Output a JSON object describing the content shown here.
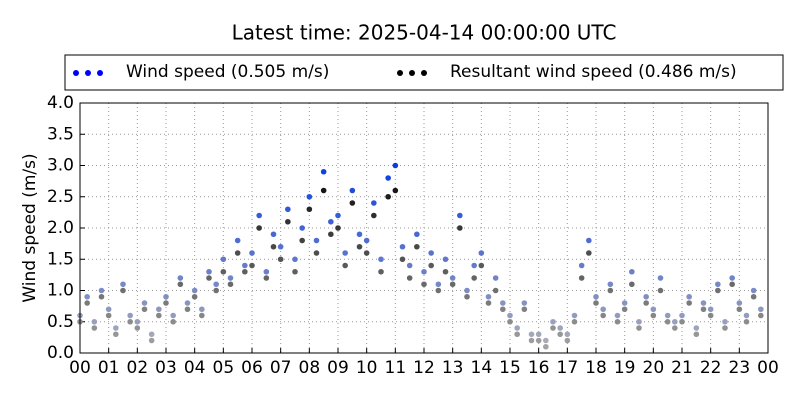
{
  "chart_data": {
    "type": "scatter",
    "title": "Latest time: 2025-04-14 00:00:00 UTC",
    "y_label": "Wind speed (m/s)",
    "x": [
      0,
      0.25,
      0.5,
      0.75,
      1,
      1.25,
      1.5,
      1.75,
      2,
      2.25,
      2.5,
      2.75,
      3,
      3.25,
      3.5,
      3.75,
      4,
      4.25,
      4.5,
      4.75,
      5,
      5.25,
      5.5,
      5.75,
      6,
      6.25,
      6.5,
      6.75,
      7,
      7.25,
      7.5,
      7.75,
      8,
      8.25,
      8.5,
      8.75,
      9,
      9.25,
      9.5,
      9.75,
      10,
      10.25,
      10.5,
      10.75,
      11,
      11.25,
      11.5,
      11.75,
      12,
      12.25,
      12.5,
      12.75,
      13,
      13.25,
      13.5,
      13.75,
      14,
      14.25,
      14.5,
      14.75,
      15,
      15.25,
      15.5,
      15.75,
      16,
      16.25,
      16.5,
      16.75,
      17,
      17.25,
      17.5,
      17.75,
      18,
      18.25,
      18.5,
      18.75,
      19,
      19.25,
      19.5,
      19.75,
      20,
      20.25,
      20.5,
      20.75,
      21,
      21.25,
      21.5,
      21.75,
      22,
      22.25,
      22.5,
      22.75,
      23,
      23.25,
      23.5,
      23.75
    ],
    "series": [
      {
        "name": "Wind speed (0.505 m/s)",
        "color": "#0000ff",
        "cmap": [
          "#b4b4b4",
          "#0a3ce6"
        ],
        "values": [
          0.6,
          0.9,
          0.5,
          1.0,
          0.7,
          0.4,
          1.1,
          0.6,
          0.5,
          0.8,
          0.3,
          0.7,
          0.9,
          0.6,
          1.2,
          0.8,
          1.0,
          0.7,
          1.3,
          1.1,
          1.5,
          1.2,
          1.8,
          1.4,
          1.6,
          2.2,
          1.3,
          1.9,
          1.7,
          2.3,
          1.5,
          2.0,
          2.5,
          1.8,
          2.9,
          2.1,
          2.2,
          1.6,
          2.6,
          1.9,
          1.8,
          2.4,
          1.5,
          2.8,
          3.0,
          1.7,
          1.4,
          1.9,
          1.3,
          1.6,
          1.1,
          1.5,
          1.2,
          2.2,
          1.0,
          1.4,
          1.6,
          0.9,
          1.2,
          0.8,
          0.6,
          0.4,
          0.8,
          0.3,
          0.3,
          0.2,
          0.5,
          0.4,
          0.3,
          0.6,
          1.4,
          1.8,
          0.9,
          0.7,
          1.1,
          0.6,
          0.8,
          1.3,
          0.5,
          0.9,
          0.7,
          1.2,
          0.6,
          0.5,
          0.6,
          0.9,
          0.4,
          0.8,
          0.7,
          1.1,
          0.5,
          1.2,
          0.8,
          0.6,
          1.0,
          0.7
        ]
      },
      {
        "name": "Resultant wind speed (0.486 m/s)",
        "color": "#000000",
        "cmap": [
          "#a8a8a8",
          "#000000"
        ],
        "values": [
          0.5,
          0.8,
          0.4,
          0.9,
          0.6,
          0.3,
          1.0,
          0.5,
          0.4,
          0.7,
          0.2,
          0.6,
          0.8,
          0.5,
          1.1,
          0.7,
          0.9,
          0.6,
          1.2,
          1.0,
          1.3,
          1.1,
          1.6,
          1.3,
          1.4,
          2.0,
          1.2,
          1.7,
          1.5,
          2.1,
          1.3,
          1.8,
          2.3,
          1.6,
          2.6,
          1.9,
          2.0,
          1.4,
          2.4,
          1.7,
          1.6,
          2.2,
          1.3,
          2.5,
          2.6,
          1.5,
          1.2,
          1.7,
          1.1,
          1.4,
          1.0,
          1.3,
          1.1,
          2.0,
          0.9,
          1.2,
          1.4,
          0.8,
          1.0,
          0.7,
          0.5,
          0.3,
          0.7,
          0.2,
          0.2,
          0.1,
          0.4,
          0.3,
          0.2,
          0.5,
          1.2,
          1.6,
          0.8,
          0.6,
          1.0,
          0.5,
          0.7,
          1.1,
          0.4,
          0.8,
          0.6,
          1.0,
          0.5,
          0.4,
          0.5,
          0.8,
          0.3,
          0.7,
          0.6,
          1.0,
          0.4,
          1.1,
          0.7,
          0.5,
          0.9,
          0.6
        ]
      }
    ],
    "xlim": [
      0,
      24
    ],
    "ylim": [
      0,
      4
    ],
    "xticks": [
      {
        "value": 0,
        "label": "00"
      },
      {
        "value": 1,
        "label": "01"
      },
      {
        "value": 2,
        "label": "02"
      },
      {
        "value": 3,
        "label": "03"
      },
      {
        "value": 4,
        "label": "04"
      },
      {
        "value": 5,
        "label": "05"
      },
      {
        "value": 6,
        "label": "06"
      },
      {
        "value": 7,
        "label": "07"
      },
      {
        "value": 8,
        "label": "08"
      },
      {
        "value": 9,
        "label": "09"
      },
      {
        "value": 10,
        "label": "10"
      },
      {
        "value": 11,
        "label": "11"
      },
      {
        "value": 12,
        "label": "12"
      },
      {
        "value": 13,
        "label": "13"
      },
      {
        "value": 14,
        "label": "14"
      },
      {
        "value": 15,
        "label": "15"
      },
      {
        "value": 16,
        "label": "16"
      },
      {
        "value": 17,
        "label": "17"
      },
      {
        "value": 18,
        "label": "18"
      },
      {
        "value": 19,
        "label": "19"
      },
      {
        "value": 20,
        "label": "20"
      },
      {
        "value": 21,
        "label": "21"
      },
      {
        "value": 22,
        "label": "22"
      },
      {
        "value": 23,
        "label": "23"
      },
      {
        "value": 24,
        "label": "00"
      }
    ],
    "yticks": [
      {
        "value": 0,
        "label": "0.0"
      },
      {
        "value": 0.5,
        "label": "0.5"
      },
      {
        "value": 1,
        "label": "1.0"
      },
      {
        "value": 1.5,
        "label": "1.5"
      },
      {
        "value": 2,
        "label": "2.0"
      },
      {
        "value": 2.5,
        "label": "2.5"
      },
      {
        "value": 3,
        "label": "3.0"
      },
      {
        "value": 3.5,
        "label": "3.5"
      },
      {
        "value": 4,
        "label": "4.0"
      }
    ],
    "grid": true
  }
}
